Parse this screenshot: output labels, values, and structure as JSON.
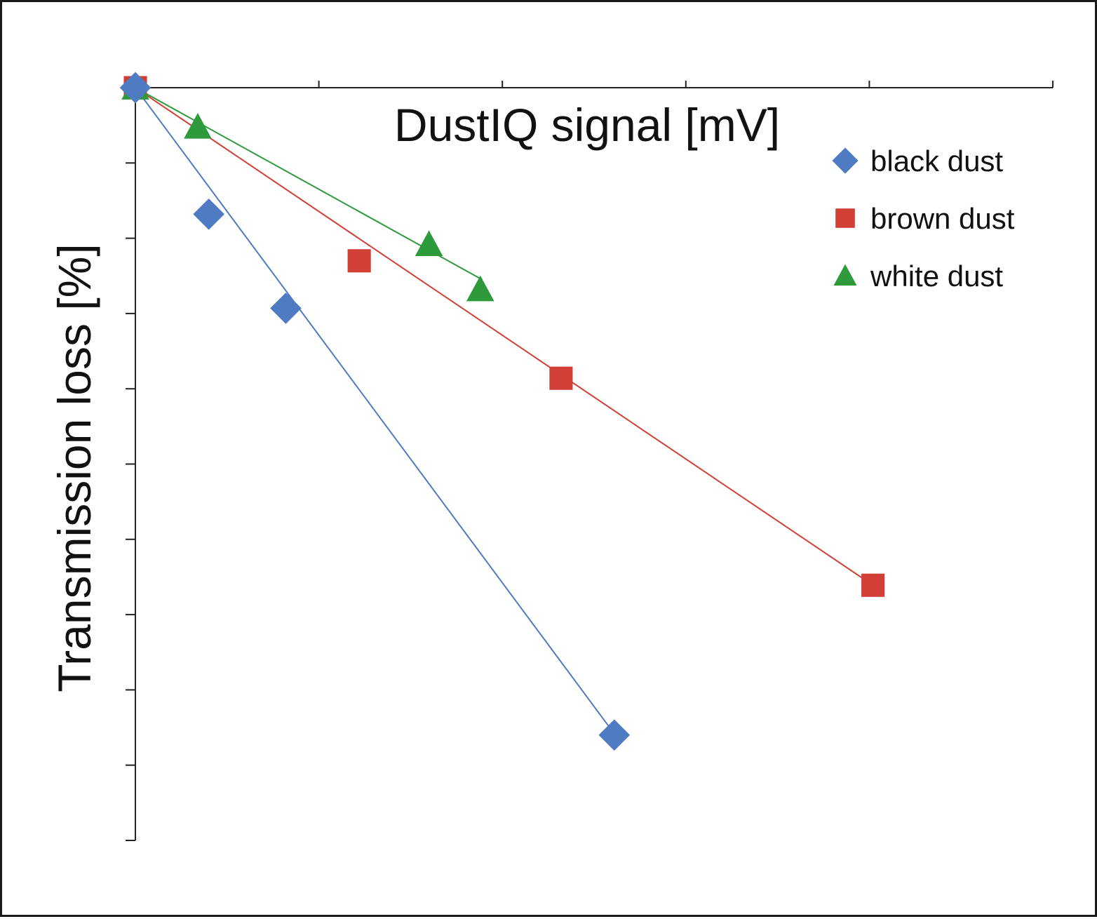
{
  "chart_data": {
    "type": "scatter",
    "xlabel": "DustIQ signal [mV]",
    "ylabel": "Transmission loss [%]",
    "xlim": [
      0,
      25
    ],
    "ylim": [
      -10,
      0
    ],
    "x_major_step": 5,
    "y_major_step": 1,
    "tick_labels_shown": false,
    "grid": false,
    "legend": "top-right",
    "series": [
      {
        "name": "black dust",
        "marker": "diamond",
        "color": "#4F7BC2",
        "points": [
          [
            0,
            0
          ],
          [
            2,
            -1.68
          ],
          [
            4.1,
            -2.93
          ],
          [
            13.05,
            -8.6
          ]
        ],
        "trend": [
          [
            0,
            0
          ],
          [
            13.0,
            -8.55
          ]
        ]
      },
      {
        "name": "brown dust",
        "marker": "square",
        "color": "#D13F36",
        "points": [
          [
            0,
            0
          ],
          [
            6.1,
            -2.3
          ],
          [
            11.6,
            -3.86
          ],
          [
            20.1,
            -6.61
          ]
        ],
        "trend": [
          [
            0,
            0
          ],
          [
            20.1,
            -6.61
          ]
        ]
      },
      {
        "name": "white dust",
        "marker": "triangle",
        "color": "#2E9A3C",
        "points": [
          [
            0,
            0
          ],
          [
            1.7,
            -0.52
          ],
          [
            8.0,
            -2.08
          ],
          [
            9.4,
            -2.68
          ]
        ],
        "trend": [
          [
            0,
            0
          ],
          [
            9.45,
            -2.55
          ]
        ]
      }
    ]
  }
}
